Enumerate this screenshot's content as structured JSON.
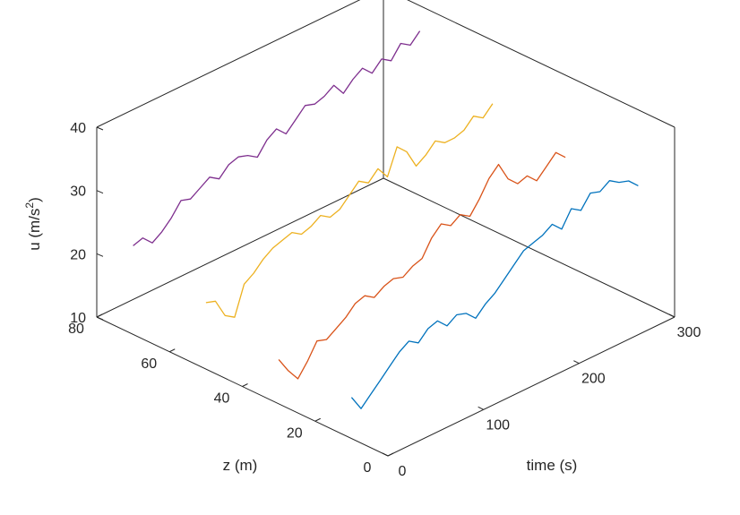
{
  "chart_data": {
    "type": "line",
    "view": "3d",
    "title": "",
    "axes": {
      "x": {
        "label": "time (s)",
        "range": [
          0,
          300
        ],
        "ticks": [
          0,
          100,
          200,
          300
        ]
      },
      "z": {
        "label": "z (m)",
        "range": [
          0,
          80
        ],
        "ticks": [
          0,
          20,
          40,
          60,
          80
        ]
      },
      "y": {
        "label_main": "u (m/s",
        "label_sup": "2",
        "label_close": ")",
        "range": [
          10,
          40
        ],
        "ticks": [
          10,
          20,
          30,
          40
        ]
      }
    },
    "grid": false,
    "box": true,
    "series": [
      {
        "color": "#0072BD",
        "z": 10,
        "time": [
          0,
          10,
          20,
          30,
          40,
          50,
          60,
          70,
          80,
          90,
          100,
          110,
          120,
          130,
          140,
          150,
          160,
          170,
          180,
          190,
          200,
          210,
          220,
          230,
          240,
          250,
          260,
          270,
          280,
          290,
          300
        ],
        "u": [
          16.5,
          14.0,
          15.5,
          17.0,
          18.5,
          20.0,
          21.0,
          20.0,
          21.5,
          22.0,
          20.5,
          21.5,
          21.0,
          19.5,
          21.0,
          22.0,
          23.5,
          25.0,
          26.5,
          27.0,
          27.5,
          28.5,
          27.0,
          29.5,
          28.5,
          30.5,
          30.0,
          31.0,
          30.0,
          29.5,
          28.0
        ]
      },
      {
        "color": "#D95319",
        "z": 30,
        "time": [
          0,
          10,
          20,
          30,
          40,
          50,
          60,
          70,
          80,
          90,
          100,
          110,
          120,
          130,
          140,
          150,
          160,
          170,
          180,
          190,
          200,
          210,
          220,
          230,
          240,
          250,
          260,
          270,
          280,
          290,
          300
        ],
        "u": [
          17.0,
          14.5,
          12.5,
          14.5,
          17.0,
          16.5,
          17.5,
          18.5,
          20.0,
          20.5,
          19.5,
          20.5,
          21.0,
          20.5,
          21.5,
          22.0,
          24.5,
          26.0,
          25.0,
          26.0,
          25.0,
          27.0,
          29.5,
          31.0,
          28.0,
          26.5,
          27.0,
          25.5,
          27.0,
          28.5,
          27.0
        ]
      },
      {
        "color": "#EDB120",
        "z": 50,
        "time": [
          0,
          10,
          20,
          30,
          40,
          50,
          60,
          70,
          80,
          90,
          100,
          110,
          120,
          130,
          140,
          150,
          160,
          170,
          180,
          190,
          200,
          210,
          220,
          230,
          240,
          250,
          260,
          270,
          280,
          290,
          300
        ],
        "u": [
          20.5,
          20.0,
          17.0,
          16.0,
          20.5,
          21.5,
          23.0,
          24.0,
          24.5,
          25.0,
          24.0,
          24.5,
          25.5,
          24.5,
          25.0,
          26.5,
          28.0,
          27.0,
          28.5,
          26.5,
          30.5,
          29.0,
          26.0,
          27.0,
          28.5,
          27.5,
          27.5,
          28.0,
          29.5,
          28.5,
          30.0
        ]
      },
      {
        "color": "#7E2F8E",
        "z": 70,
        "time": [
          0,
          10,
          20,
          30,
          40,
          50,
          60,
          70,
          80,
          90,
          100,
          110,
          120,
          130,
          140,
          150,
          160,
          170,
          180,
          190,
          200,
          210,
          220,
          230,
          240,
          250,
          260,
          270,
          280,
          290,
          300
        ],
        "u": [
          24.0,
          24.5,
          23.0,
          24.0,
          25.5,
          27.5,
          27.0,
          28.0,
          29.0,
          28.0,
          29.5,
          30.0,
          29.5,
          28.5,
          30.5,
          31.5,
          30.0,
          31.5,
          33.0,
          32.5,
          33.0,
          34.0,
          32.0,
          33.5,
          34.5,
          33.0,
          34.5,
          33.5,
          35.5,
          34.5,
          36.0
        ]
      }
    ]
  }
}
